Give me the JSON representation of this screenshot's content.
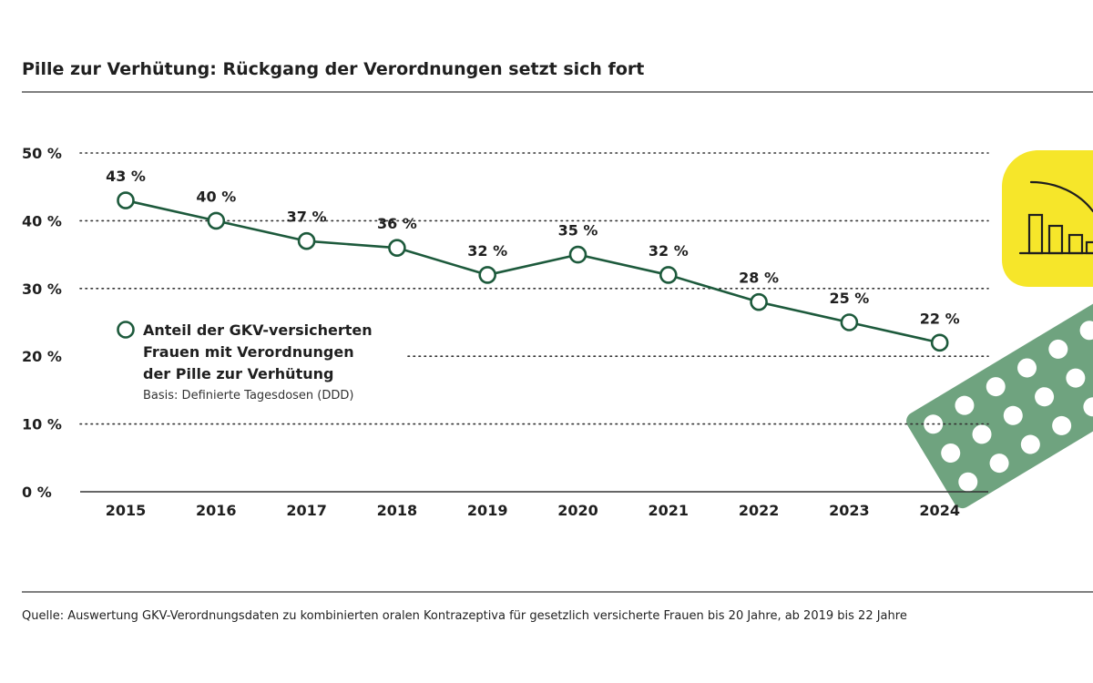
{
  "colors": {
    "line": "#1d5a3c",
    "grid": "#333333",
    "rule": "#555555",
    "accent_yellow": "#f6e62a",
    "blister_green": "#6fa37f"
  },
  "chart_data": {
    "type": "line",
    "title": "Pille zur Verhütung: Rückgang der Verordnungen setzt sich fort",
    "categories": [
      "2015",
      "2016",
      "2017",
      "2018",
      "2019",
      "2020",
      "2021",
      "2022",
      "2023",
      "2024"
    ],
    "series": [
      {
        "name": "Anteil der GKV-versicherten Frauen mit Verordnungen der Pille zur Verhütung",
        "values": [
          43,
          40,
          37,
          36,
          32,
          35,
          32,
          28,
          25,
          22
        ]
      }
    ],
    "data_labels": [
      "43 %",
      "40 %",
      "37 %",
      "36 %",
      "32 %",
      "35 %",
      "32 %",
      "28 %",
      "25 %",
      "22 %"
    ],
    "ylim": [
      0,
      50
    ],
    "yticks": [
      0,
      10,
      20,
      30,
      40,
      50
    ],
    "ytick_labels": [
      "0 %",
      "10 %",
      "20 %",
      "30 %",
      "40 %",
      "50 %"
    ],
    "grid": true,
    "legend": {
      "lines": [
        "Anteil der GKV-versicherten",
        "Frauen mit Verordnungen",
        "der Pille zur Verhütung"
      ],
      "basis": "Basis: Definierte Tagesdosen (DDD)",
      "position": "left"
    },
    "source": "Quelle: Auswertung GKV-Verordnungsdaten zu kombinierten oralen Kontrazeptiva für gesetzlich versicherte Frauen bis 20 Jahre, ab 2019 bis 22 Jahre"
  },
  "decorations": {
    "icons": [
      "declining-bar-chart-icon",
      "pill-blister-icon"
    ]
  }
}
